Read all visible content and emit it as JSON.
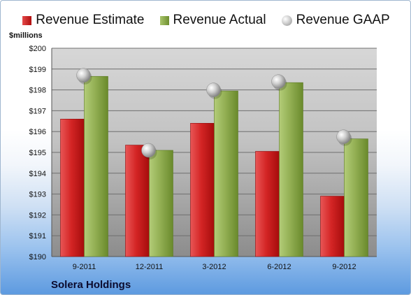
{
  "legend": {
    "estimate": "Revenue Estimate",
    "actual": "Revenue Actual",
    "gaap": "Revenue GAAP"
  },
  "unit_label": "$millions",
  "company": "Solera Holdings",
  "colors": {
    "estimate": "#cc1f1f",
    "actual": "#8fac4e",
    "gaap": "#b8b8b8"
  },
  "chart_data": {
    "type": "bar",
    "categories": [
      "9-2011",
      "12-2011",
      "3-2012",
      "6-2012",
      "9-2012"
    ],
    "series": [
      {
        "name": "Revenue Estimate",
        "values": [
          196.6,
          195.35,
          196.4,
          195.05,
          192.9
        ]
      },
      {
        "name": "Revenue Actual",
        "values": [
          198.65,
          195.1,
          197.95,
          198.35,
          195.65
        ]
      },
      {
        "name": "Revenue GAAP",
        "values": [
          198.7,
          195.1,
          198.0,
          198.4,
          195.75
        ],
        "style": "marker"
      }
    ],
    "ylabel": "$millions",
    "ylim": [
      190,
      200
    ],
    "yticks": [
      "$190",
      "$191",
      "$192",
      "$193",
      "$194",
      "$195",
      "$196",
      "$197",
      "$198",
      "$199",
      "$200"
    ],
    "grid": true,
    "legend_position": "top"
  }
}
